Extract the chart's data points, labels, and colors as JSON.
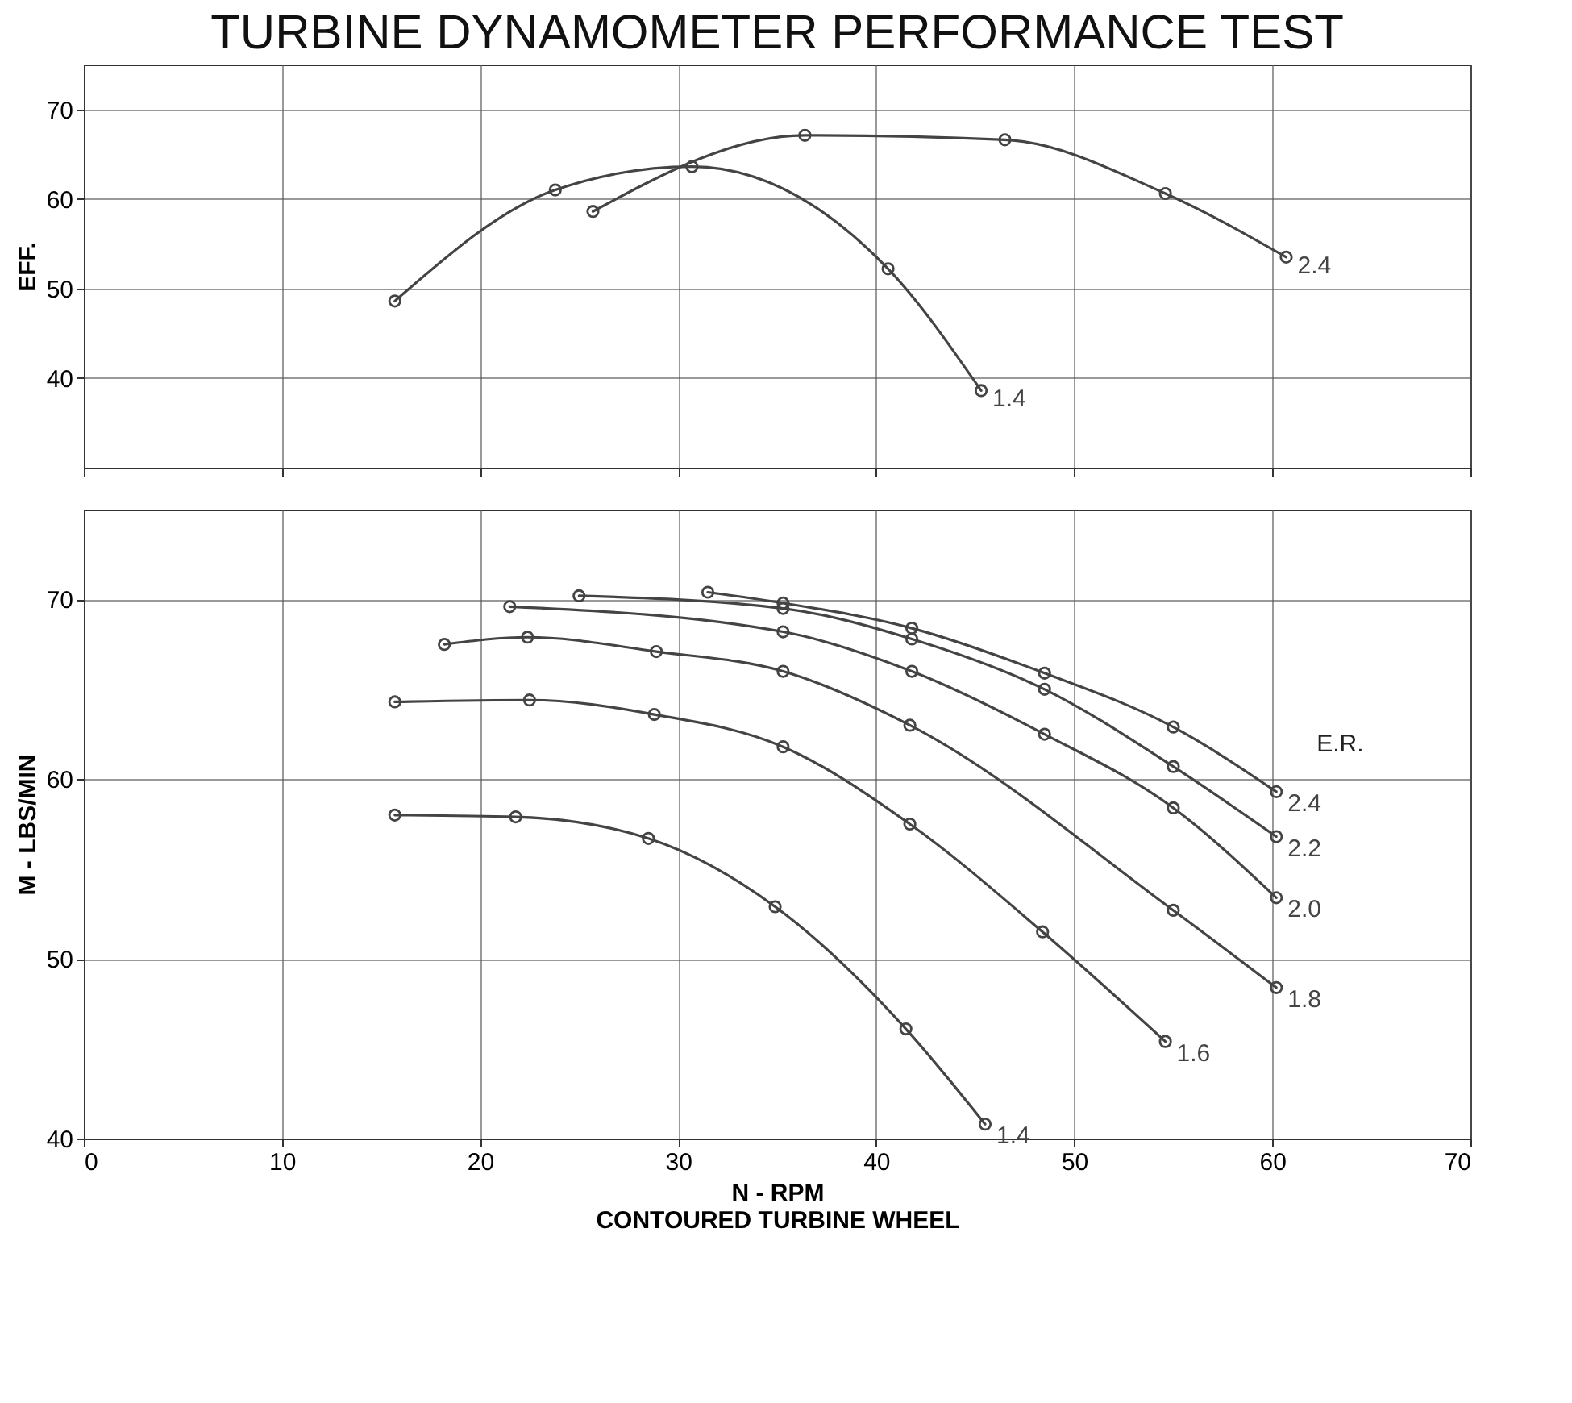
{
  "chart_data": [
    {
      "type": "line",
      "title": "TURBINE DYNAMOMETER PERFORMANCE TEST",
      "ylabel": "EFF.",
      "xlim": [
        0,
        70
      ],
      "xticks": [
        0,
        10,
        20,
        30,
        40,
        50,
        60,
        70
      ],
      "ylim": [
        30,
        75
      ],
      "yticks": [
        40,
        50,
        60,
        70
      ],
      "tick_labels": "y",
      "grid": true,
      "marker": "circle",
      "line_style": "solid",
      "legend": "right",
      "series": [
        {
          "name": "2.4",
          "color": "#444444",
          "x": [
            25.7,
            36.4,
            46.5,
            54.6,
            60.7
          ],
          "values": [
            58.6,
            67.1,
            66.6,
            60.6,
            53.5
          ]
        },
        {
          "name": "1.4",
          "color": "#444444",
          "x": [
            15.7,
            23.8,
            30.7,
            40.6,
            45.3
          ],
          "values": [
            48.6,
            61.0,
            63.6,
            52.2,
            38.6
          ]
        }
      ]
    },
    {
      "type": "line",
      "xlabel": "N - RPM",
      "ylabel": "M - LBS/MIN",
      "legend_title": "E.R.",
      "annotations": [
        "CONTOURED TURBINE WHEEL"
      ],
      "xlim": [
        0,
        70
      ],
      "xticks": [
        0,
        10,
        20,
        30,
        40,
        50,
        60,
        70
      ],
      "ylim": [
        40,
        75
      ],
      "yticks": [
        40,
        50,
        60,
        70
      ],
      "grid": true,
      "marker": "circle",
      "line_style": "solid",
      "legend": "bottom right",
      "series": [
        {
          "name": "2.4",
          "color": "#444444",
          "x": [
            31.5,
            35.3,
            41.8,
            48.5,
            55.0,
            60.2
          ],
          "values": [
            70.4,
            69.8,
            68.4,
            65.9,
            62.9,
            59.3
          ]
        },
        {
          "name": "2.2",
          "color": "#444444",
          "x": [
            25.0,
            35.3,
            41.8,
            48.5,
            55.0,
            60.2
          ],
          "values": [
            70.2,
            69.5,
            67.8,
            65.0,
            60.7,
            56.8
          ]
        },
        {
          "name": "2.0",
          "color": "#444444",
          "x": [
            21.5,
            35.3,
            41.8,
            48.5,
            55.0,
            60.2
          ],
          "values": [
            69.6,
            68.2,
            66.0,
            62.5,
            58.4,
            53.4
          ]
        },
        {
          "name": "1.8",
          "color": "#444444",
          "x": [
            18.2,
            22.4,
            28.9,
            35.3,
            41.7,
            55.0,
            60.2
          ],
          "values": [
            67.5,
            67.9,
            67.1,
            66.0,
            63.0,
            52.7,
            48.4
          ]
        },
        {
          "name": "1.6",
          "color": "#444444",
          "x": [
            15.7,
            22.5,
            28.8,
            35.3,
            41.7,
            48.4,
            54.6
          ],
          "values": [
            64.3,
            64.4,
            63.6,
            61.8,
            57.5,
            51.5,
            45.4
          ]
        },
        {
          "name": "1.4",
          "color": "#444444",
          "x": [
            15.7,
            21.8,
            28.5,
            34.9,
            41.5,
            45.5
          ],
          "values": [
            58.0,
            57.9,
            56.7,
            52.9,
            46.1,
            40.8
          ]
        }
      ]
    }
  ]
}
